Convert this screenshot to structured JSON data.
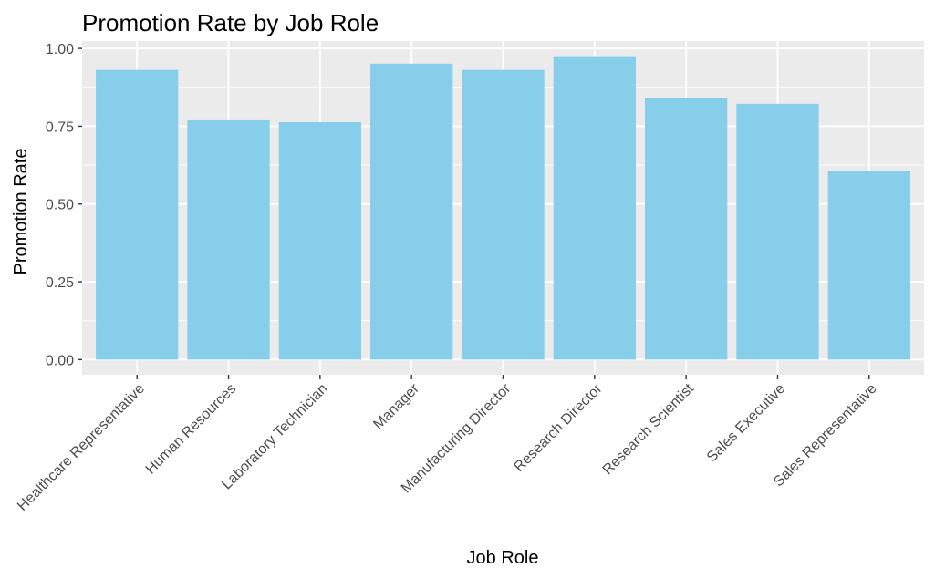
{
  "chart_data": {
    "type": "bar",
    "title": "Promotion Rate by Job Role",
    "xlabel": "Job Role",
    "ylabel": "Promotion Rate",
    "categories": [
      "Healthcare Representative",
      "Human Resources",
      "Laboratory Technician",
      "Manager",
      "Manufacturing Director",
      "Research Director",
      "Research Scientist",
      "Sales Executive",
      "Sales Representative"
    ],
    "values": [
      0.931,
      0.769,
      0.763,
      0.951,
      0.931,
      0.975,
      0.841,
      0.822,
      0.607
    ],
    "ylim": [
      -0.04875,
      1.02375
    ],
    "yticks": [
      0.0,
      0.25,
      0.5,
      0.75,
      1.0
    ],
    "ytick_labels": [
      "0.00",
      "0.25",
      "0.50",
      "0.75",
      "1.00"
    ],
    "grid": true,
    "legend": "none",
    "colors": {
      "bar": "#87CEEB",
      "panel": "#EBEBEB",
      "grid": "#FFFFFF",
      "tick_text": "#4D4D4D",
      "tick_mark": "#333333",
      "text": "#000000"
    }
  }
}
